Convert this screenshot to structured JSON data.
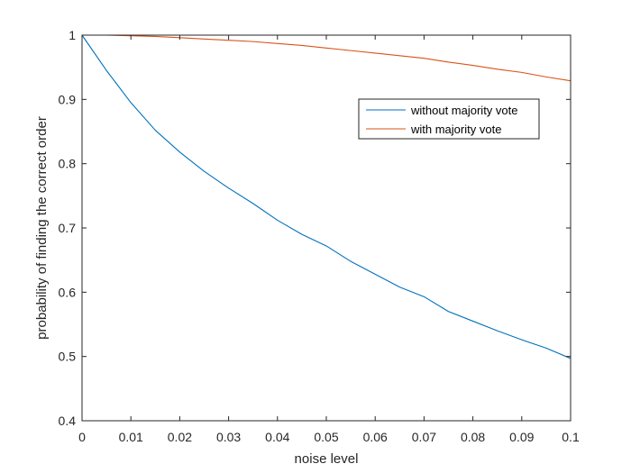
{
  "chart_data": {
    "type": "line",
    "xlabel": "noise level",
    "ylabel": "probability of finding the correct order",
    "xlim": [
      0,
      0.1
    ],
    "ylim": [
      0.4,
      1
    ],
    "xticks": [
      0,
      0.01,
      0.02,
      0.03,
      0.04,
      0.05,
      0.06,
      0.07,
      0.08,
      0.09,
      0.1
    ],
    "xtick_labels": [
      "0",
      "0.01",
      "0.02",
      "0.03",
      "0.04",
      "0.05",
      "0.06",
      "0.07",
      "0.08",
      "0.09",
      "0.1"
    ],
    "yticks": [
      0.4,
      0.5,
      0.6,
      0.7,
      0.8,
      0.9,
      1
    ],
    "ytick_labels": [
      "0.4",
      "0.5",
      "0.6",
      "0.7",
      "0.8",
      "0.9",
      "1"
    ],
    "grid": false,
    "legend_position": "upper-right",
    "series": [
      {
        "name": "without majority vote",
        "color": "#0072BD",
        "x": [
          0,
          0.005,
          0.01,
          0.015,
          0.02,
          0.025,
          0.03,
          0.035,
          0.04,
          0.045,
          0.05,
          0.055,
          0.06,
          0.065,
          0.07,
          0.075,
          0.08,
          0.085,
          0.09,
          0.095,
          0.1
        ],
        "y": [
          1.0,
          0.945,
          0.895,
          0.852,
          0.818,
          0.788,
          0.762,
          0.738,
          0.712,
          0.69,
          0.672,
          0.648,
          0.628,
          0.608,
          0.593,
          0.57,
          0.555,
          0.54,
          0.526,
          0.513,
          0.497
        ]
      },
      {
        "name": "with majority vote",
        "color": "#D95319",
        "x": [
          0,
          0.005,
          0.01,
          0.015,
          0.02,
          0.025,
          0.03,
          0.035,
          0.04,
          0.045,
          0.05,
          0.055,
          0.06,
          0.065,
          0.07,
          0.075,
          0.08,
          0.085,
          0.09,
          0.095,
          0.1
        ],
        "y": [
          1.0,
          1.0,
          0.999,
          0.998,
          0.996,
          0.994,
          0.992,
          0.99,
          0.987,
          0.984,
          0.98,
          0.976,
          0.972,
          0.968,
          0.964,
          0.958,
          0.953,
          0.947,
          0.942,
          0.935,
          0.929
        ]
      }
    ]
  }
}
